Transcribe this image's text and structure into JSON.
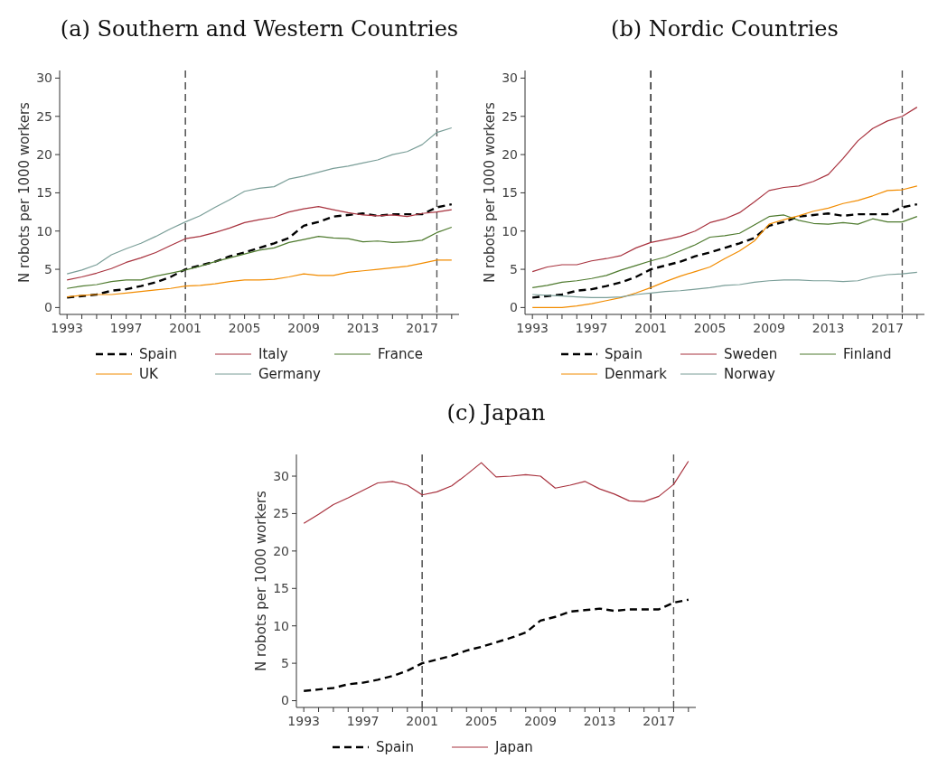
{
  "chart_data": [
    {
      "type": "line",
      "title": "(a) Southern and Western Countries",
      "ylabel": "N robots per 1000 workers",
      "x": [
        1993,
        1994,
        1995,
        1996,
        1997,
        1998,
        1999,
        2000,
        2001,
        2002,
        2003,
        2004,
        2005,
        2006,
        2007,
        2008,
        2009,
        2010,
        2011,
        2012,
        2013,
        2014,
        2015,
        2016,
        2017,
        2018,
        2019
      ],
      "series": [
        {
          "name": "Spain",
          "color": "#000000",
          "line_style": "dashed",
          "values": [
            1.3,
            1.5,
            1.7,
            2.2,
            2.4,
            2.8,
            3.3,
            4.0,
            5.0,
            5.5,
            6.0,
            6.7,
            7.2,
            7.8,
            8.4,
            9.1,
            10.7,
            11.2,
            11.9,
            12.1,
            12.3,
            12.0,
            12.2,
            12.2,
            12.2,
            13.1,
            13.5
          ]
        },
        {
          "name": "Italy",
          "color": "#a8323e",
          "line_style": "solid",
          "values": [
            3.6,
            4.0,
            4.5,
            5.1,
            5.9,
            6.5,
            7.2,
            8.1,
            9.0,
            9.3,
            9.8,
            10.4,
            11.1,
            11.5,
            11.8,
            12.5,
            12.9,
            13.2,
            12.8,
            12.4,
            12.1,
            12.0,
            12.1,
            11.9,
            12.3,
            12.5,
            12.8
          ]
        },
        {
          "name": "France",
          "color": "#4e7a2e",
          "line_style": "solid",
          "values": [
            2.5,
            2.8,
            3.0,
            3.4,
            3.6,
            3.6,
            4.1,
            4.5,
            4.9,
            5.4,
            6.0,
            6.5,
            7.0,
            7.5,
            7.8,
            8.5,
            8.9,
            9.3,
            9.1,
            9.0,
            8.6,
            8.7,
            8.5,
            8.6,
            8.8,
            9.8,
            10.5
          ]
        },
        {
          "name": "UK",
          "color": "#f28c00",
          "line_style": "solid",
          "values": [
            1.4,
            1.6,
            1.7,
            1.7,
            1.9,
            2.1,
            2.3,
            2.5,
            2.8,
            2.9,
            3.1,
            3.4,
            3.6,
            3.6,
            3.7,
            4.0,
            4.4,
            4.2,
            4.2,
            4.6,
            4.8,
            5.0,
            5.2,
            5.4,
            5.8,
            6.2,
            6.2
          ]
        },
        {
          "name": "Germany",
          "color": "#7a9e98",
          "line_style": "solid",
          "values": [
            4.4,
            4.9,
            5.6,
            6.9,
            7.7,
            8.4,
            9.3,
            10.3,
            11.2,
            12.0,
            13.1,
            14.1,
            15.2,
            15.6,
            15.8,
            16.8,
            17.2,
            17.7,
            18.2,
            18.5,
            18.9,
            19.3,
            20.0,
            20.4,
            21.3,
            22.9,
            23.5
          ]
        }
      ],
      "xlim": [
        1992.5,
        2019.5
      ],
      "xticks": [
        1993,
        {
          "value": 1994,
          "label": null
        },
        {
          "value": 1995,
          "label": null
        },
        {
          "value": 1996,
          "label": null
        },
        1997,
        {
          "value": 1998,
          "label": null
        },
        {
          "value": 1999,
          "label": null
        },
        {
          "value": 2000,
          "label": null
        },
        2001,
        {
          "value": 2002,
          "label": null
        },
        {
          "value": 2003,
          "label": null
        },
        {
          "value": 2004,
          "label": null
        },
        2005,
        {
          "value": 2006,
          "label": null
        },
        {
          "value": 2007,
          "label": null
        },
        {
          "value": 2008,
          "label": null
        },
        2009,
        {
          "value": 2010,
          "label": null
        },
        {
          "value": 2011,
          "label": null
        },
        {
          "value": 2012,
          "label": null
        },
        2013,
        {
          "value": 2014,
          "label": null
        },
        {
          "value": 2015,
          "label": null
        },
        {
          "value": 2016,
          "label": null
        },
        2017,
        {
          "value": 2018,
          "label": null
        },
        {
          "value": 2019,
          "label": null
        }
      ],
      "ylim": [
        -0.9,
        31
      ],
      "yticks": [
        0,
        5,
        10,
        15,
        20,
        25,
        30
      ],
      "ref_lines": [
        {
          "axis": "x",
          "value": 2001,
          "color": "#444444",
          "line_style": "dashed"
        },
        {
          "axis": "x",
          "value": 2018,
          "color": "#555555",
          "line_style": "dashed"
        }
      ],
      "legend": "bottom"
    },
    {
      "type": "line",
      "title": "(b) Nordic Countries",
      "ylabel": "N robots per 1000 workers",
      "x": [
        1993,
        1994,
        1995,
        1996,
        1997,
        1998,
        1999,
        2000,
        2001,
        2002,
        2003,
        2004,
        2005,
        2006,
        2007,
        2008,
        2009,
        2010,
        2011,
        2012,
        2013,
        2014,
        2015,
        2016,
        2017,
        2018,
        2019
      ],
      "series": [
        {
          "name": "Spain",
          "color": "#000000",
          "line_style": "dashed",
          "values": [
            1.3,
            1.5,
            1.7,
            2.2,
            2.4,
            2.8,
            3.3,
            4.0,
            5.0,
            5.5,
            6.0,
            6.7,
            7.2,
            7.8,
            8.4,
            9.1,
            10.7,
            11.2,
            11.9,
            12.1,
            12.3,
            12.0,
            12.2,
            12.2,
            12.2,
            13.1,
            13.5
          ]
        },
        {
          "name": "Sweden",
          "color": "#a8323e",
          "line_style": "solid",
          "values": [
            4.7,
            5.3,
            5.6,
            5.6,
            6.1,
            6.4,
            6.8,
            7.8,
            8.5,
            8.9,
            9.3,
            10.0,
            11.1,
            11.6,
            12.4,
            13.8,
            15.3,
            15.7,
            15.9,
            16.5,
            17.4,
            19.5,
            21.8,
            23.4,
            24.4,
            25.0,
            26.2
          ]
        },
        {
          "name": "Finland",
          "color": "#4e7a2e",
          "line_style": "solid",
          "values": [
            2.6,
            2.9,
            3.3,
            3.5,
            3.8,
            4.2,
            4.9,
            5.5,
            6.1,
            6.6,
            7.4,
            8.2,
            9.2,
            9.4,
            9.7,
            10.8,
            11.9,
            12.1,
            11.4,
            11.0,
            10.9,
            11.1,
            10.9,
            11.6,
            11.2,
            11.2,
            11.9
          ]
        },
        {
          "name": "Denmark",
          "color": "#f28c00",
          "line_style": "solid",
          "values": [
            0,
            0,
            0,
            0.2,
            0.5,
            0.9,
            1.3,
            1.9,
            2.6,
            3.4,
            4.1,
            4.7,
            5.3,
            6.4,
            7.4,
            8.7,
            10.9,
            11.5,
            12.0,
            12.6,
            13.0,
            13.6,
            14.0,
            14.6,
            15.3,
            15.4,
            15.9
          ]
        },
        {
          "name": "Norway",
          "color": "#7a9e98",
          "line_style": "solid",
          "values": [
            1.7,
            1.6,
            1.5,
            1.4,
            1.3,
            1.3,
            1.4,
            1.7,
            1.9,
            2.1,
            2.2,
            2.4,
            2.6,
            2.9,
            3.0,
            3.3,
            3.5,
            3.6,
            3.6,
            3.5,
            3.5,
            3.4,
            3.5,
            4.0,
            4.3,
            4.4,
            4.6
          ]
        }
      ],
      "xlim": [
        1992.5,
        2019.5
      ],
      "xticks": [
        1993,
        {
          "value": 1994,
          "label": null
        },
        {
          "value": 1995,
          "label": null
        },
        {
          "value": 1996,
          "label": null
        },
        1997,
        {
          "value": 1998,
          "label": null
        },
        {
          "value": 1999,
          "label": null
        },
        {
          "value": 2000,
          "label": null
        },
        2001,
        {
          "value": 2002,
          "label": null
        },
        {
          "value": 2003,
          "label": null
        },
        {
          "value": 2004,
          "label": null
        },
        2005,
        {
          "value": 2006,
          "label": null
        },
        {
          "value": 2007,
          "label": null
        },
        {
          "value": 2008,
          "label": null
        },
        2009,
        {
          "value": 2010,
          "label": null
        },
        {
          "value": 2011,
          "label": null
        },
        {
          "value": 2012,
          "label": null
        },
        2013,
        {
          "value": 2014,
          "label": null
        },
        {
          "value": 2015,
          "label": null
        },
        {
          "value": 2016,
          "label": null
        },
        2017,
        {
          "value": 2018,
          "label": null
        },
        {
          "value": 2019,
          "label": null
        }
      ],
      "ylim": [
        -0.9,
        31
      ],
      "yticks": [
        0,
        5,
        10,
        15,
        20,
        25,
        30
      ],
      "ref_lines": [
        {
          "axis": "x",
          "value": 2001,
          "color": "#111111",
          "line_style": "dashed"
        },
        {
          "axis": "x",
          "value": 2018,
          "color": "#555555",
          "line_style": "dashed"
        }
      ],
      "legend": "bottom"
    },
    {
      "type": "line",
      "title": "(c) Japan",
      "ylabel": "N robots per 1000 workers",
      "x": [
        1993,
        1994,
        1995,
        1996,
        1997,
        1998,
        1999,
        2000,
        2001,
        2002,
        2003,
        2004,
        2005,
        2006,
        2007,
        2008,
        2009,
        2010,
        2011,
        2012,
        2013,
        2014,
        2015,
        2016,
        2017,
        2018,
        2019
      ],
      "series": [
        {
          "name": "Spain",
          "color": "#000000",
          "line_style": "dashed",
          "values": [
            1.3,
            1.5,
            1.7,
            2.2,
            2.4,
            2.8,
            3.3,
            4.0,
            5.0,
            5.5,
            6.0,
            6.7,
            7.2,
            7.8,
            8.4,
            9.1,
            10.7,
            11.2,
            11.9,
            12.1,
            12.3,
            12.0,
            12.2,
            12.2,
            12.2,
            13.1,
            13.5
          ]
        },
        {
          "name": "Japan",
          "color": "#a8323e",
          "line_style": "solid",
          "values": [
            23.7,
            24.9,
            26.2,
            27.1,
            28.1,
            29.1,
            29.3,
            28.8,
            27.5,
            27.9,
            28.7,
            30.2,
            31.8,
            29.9,
            30.0,
            30.2,
            30.0,
            28.4,
            28.8,
            29.3,
            28.3,
            27.6,
            26.7,
            26.6,
            27.3,
            28.9,
            32.0
          ]
        }
      ],
      "xlim": [
        1992.5,
        2019.5
      ],
      "xticks": [
        1993,
        {
          "value": 1994,
          "label": null
        },
        {
          "value": 1995,
          "label": null
        },
        {
          "value": 1996,
          "label": null
        },
        1997,
        {
          "value": 1998,
          "label": null
        },
        {
          "value": 1999,
          "label": null
        },
        {
          "value": 2000,
          "label": null
        },
        2001,
        {
          "value": 2002,
          "label": null
        },
        {
          "value": 2003,
          "label": null
        },
        {
          "value": 2004,
          "label": null
        },
        2005,
        {
          "value": 2006,
          "label": null
        },
        {
          "value": 2007,
          "label": null
        },
        {
          "value": 2008,
          "label": null
        },
        2009,
        {
          "value": 2010,
          "label": null
        },
        {
          "value": 2011,
          "label": null
        },
        {
          "value": 2012,
          "label": null
        },
        2013,
        {
          "value": 2014,
          "label": null
        },
        {
          "value": 2015,
          "label": null
        },
        {
          "value": 2016,
          "label": null
        },
        2017,
        {
          "value": 2018,
          "label": null
        },
        {
          "value": 2019,
          "label": null
        }
      ],
      "ylim": [
        -0.9,
        32.9
      ],
      "yticks": [
        0,
        5,
        10,
        15,
        20,
        25,
        30
      ],
      "ref_lines": [
        {
          "axis": "x",
          "value": 2001,
          "color": "#444444",
          "line_style": "dashed"
        },
        {
          "axis": "x",
          "value": 2018,
          "color": "#555555",
          "line_style": "dashed"
        }
      ],
      "legend": "bottom"
    }
  ]
}
